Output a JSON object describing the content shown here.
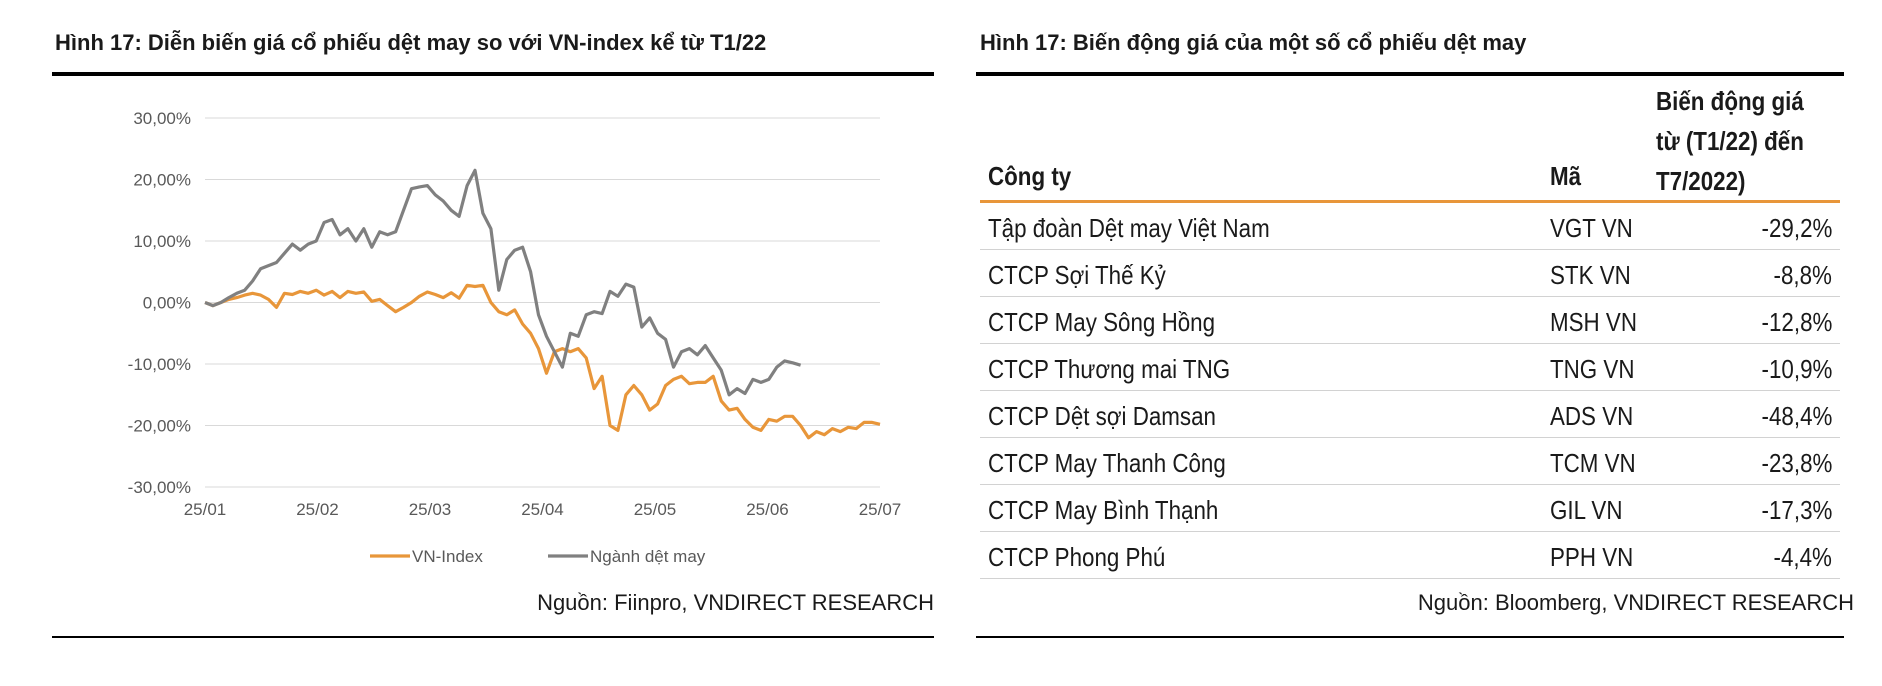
{
  "left_figure": {
    "title": "Hình 17: Diễn biến giá cổ phiếu dệt may so với VN-index kể từ T1/22",
    "source": "Nguồn: Fiinpro, VNDIRECT RESEARCH"
  },
  "right_figure": {
    "title": "Hình 17: Biến động giá của một số cổ phiếu dệt may",
    "source": "Nguồn: Bloomberg, VNDIRECT RESEARCH"
  },
  "colors": {
    "vn_index": "#e8963a",
    "textile": "#808080",
    "grid": "#d9d9d9",
    "table_rule": "#e8963a"
  },
  "chart_data": [
    {
      "type": "line",
      "ylim": [
        -30,
        30
      ],
      "yticks": [
        "30,00%",
        "20,00%",
        "10,00%",
        "0,00%",
        "-10,00%",
        "-20,00%",
        "-30,00%"
      ],
      "ytick_values": [
        30,
        20,
        10,
        0,
        -10,
        -20,
        -30
      ],
      "xticks": [
        "25/01",
        "25/02",
        "25/03",
        "25/04",
        "25/05",
        "25/06",
        "25/07"
      ],
      "grid": true,
      "legend": "bottom",
      "series": [
        {
          "name": "VN-Index",
          "color": "#e8963a",
          "points": [
            [
              0,
              0
            ],
            [
              1,
              -0.5
            ],
            [
              2,
              0
            ],
            [
              3,
              0.5
            ],
            [
              4,
              0.8
            ],
            [
              5,
              1.2
            ],
            [
              6,
              1.5
            ],
            [
              7,
              1.2
            ],
            [
              8,
              0.5
            ],
            [
              9,
              -0.8
            ],
            [
              10,
              1.5
            ],
            [
              11,
              1.3
            ],
            [
              12,
              1.8
            ],
            [
              13,
              1.5
            ],
            [
              14,
              2
            ],
            [
              15,
              1.2
            ],
            [
              16,
              1.8
            ],
            [
              17,
              0.8
            ],
            [
              18,
              1.8
            ],
            [
              19,
              1.5
            ],
            [
              20,
              1.7
            ],
            [
              21,
              0.2
            ],
            [
              22,
              0.5
            ],
            [
              23,
              -0.5
            ],
            [
              24,
              -1.5
            ],
            [
              25,
              -0.8
            ],
            [
              26,
              0
            ],
            [
              27,
              1
            ],
            [
              28,
              1.7
            ],
            [
              29,
              1.3
            ],
            [
              30,
              0.8
            ],
            [
              31,
              1.6
            ],
            [
              32,
              0.7
            ],
            [
              33,
              2.8
            ],
            [
              34,
              2.6
            ],
            [
              35,
              2.8
            ],
            [
              36,
              0
            ],
            [
              37,
              -1.5
            ],
            [
              38,
              -2
            ],
            [
              39,
              -1.2
            ],
            [
              40,
              -3.5
            ],
            [
              41,
              -5
            ],
            [
              42,
              -7.5
            ],
            [
              43,
              -11.5
            ],
            [
              44,
              -8
            ],
            [
              45,
              -7.5
            ],
            [
              46,
              -8
            ],
            [
              47,
              -7.5
            ],
            [
              48,
              -9
            ],
            [
              49,
              -14
            ],
            [
              50,
              -12
            ],
            [
              51,
              -20
            ],
            [
              52,
              -20.8
            ],
            [
              53,
              -15
            ],
            [
              54,
              -13.5
            ],
            [
              55,
              -15
            ],
            [
              56,
              -17.5
            ],
            [
              57,
              -16.5
            ],
            [
              58,
              -13.5
            ],
            [
              59,
              -12.5
            ],
            [
              60,
              -12
            ],
            [
              61,
              -13.2
            ],
            [
              62,
              -13
            ],
            [
              63,
              -13
            ],
            [
              64,
              -12
            ],
            [
              65,
              -16
            ],
            [
              66,
              -17.5
            ],
            [
              67,
              -17.2
            ],
            [
              68,
              -19
            ],
            [
              69,
              -20.3
            ],
            [
              70,
              -20.8
            ],
            [
              71,
              -19
            ],
            [
              72,
              -19.3
            ],
            [
              73,
              -18.5
            ],
            [
              74,
              -18.5
            ],
            [
              75,
              -20
            ],
            [
              76,
              -22
            ],
            [
              77,
              -21
            ],
            [
              78,
              -21.5
            ],
            [
              79,
              -20.5
            ],
            [
              80,
              -21
            ],
            [
              81,
              -20.3
            ],
            [
              82,
              -20.5
            ],
            [
              83,
              -19.5
            ],
            [
              84,
              -19.5
            ],
            [
              85,
              -19.8
            ]
          ]
        },
        {
          "name": "Ngành dệt may",
          "color": "#808080",
          "points": [
            [
              0,
              0
            ],
            [
              1,
              -0.5
            ],
            [
              2,
              0
            ],
            [
              3,
              0.8
            ],
            [
              4,
              1.5
            ],
            [
              5,
              2
            ],
            [
              6,
              3.5
            ],
            [
              7,
              5.5
            ],
            [
              8,
              6
            ],
            [
              9,
              6.5
            ],
            [
              10,
              8
            ],
            [
              11,
              9.5
            ],
            [
              12,
              8.5
            ],
            [
              13,
              9.5
            ],
            [
              14,
              10
            ],
            [
              15,
              13
            ],
            [
              16,
              13.5
            ],
            [
              17,
              11
            ],
            [
              18,
              12
            ],
            [
              19,
              10
            ],
            [
              20,
              12
            ],
            [
              21,
              9
            ],
            [
              22,
              11.5
            ],
            [
              23,
              11
            ],
            [
              24,
              11.5
            ],
            [
              25,
              15
            ],
            [
              26,
              18.5
            ],
            [
              27,
              18.8
            ],
            [
              28,
              19
            ],
            [
              29,
              17.5
            ],
            [
              30,
              16.5
            ],
            [
              31,
              15
            ],
            [
              32,
              14
            ],
            [
              33,
              19
            ],
            [
              34,
              21.5
            ],
            [
              35,
              14.5
            ],
            [
              36,
              12
            ],
            [
              37,
              2
            ],
            [
              38,
              7
            ],
            [
              39,
              8.5
            ],
            [
              40,
              9
            ],
            [
              41,
              5
            ],
            [
              42,
              -2
            ],
            [
              43,
              -5.5
            ],
            [
              44,
              -8
            ],
            [
              45,
              -10.5
            ],
            [
              46,
              -5
            ],
            [
              47,
              -5.5
            ],
            [
              48,
              -2
            ],
            [
              49,
              -1.5
            ],
            [
              50,
              -1.8
            ],
            [
              51,
              1.8
            ],
            [
              52,
              1
            ],
            [
              53,
              3
            ],
            [
              54,
              2.5
            ],
            [
              55,
              -4
            ],
            [
              56,
              -2.5
            ],
            [
              57,
              -5
            ],
            [
              58,
              -6
            ],
            [
              59,
              -10.5
            ],
            [
              60,
              -8
            ],
            [
              61,
              -7.5
            ],
            [
              62,
              -8.5
            ],
            [
              63,
              -7
            ],
            [
              64,
              -9
            ],
            [
              65,
              -11
            ],
            [
              66,
              -15
            ],
            [
              67,
              -14
            ],
            [
              68,
              -14.8
            ],
            [
              69,
              -12.5
            ],
            [
              70,
              -13
            ],
            [
              71,
              -12.5
            ],
            [
              72,
              -10.5
            ],
            [
              73,
              -9.5
            ],
            [
              74,
              -9.8
            ],
            [
              75,
              -10.2
            ]
          ]
        }
      ]
    },
    {
      "type": "table",
      "columns": [
        "Công ty",
        "Mã",
        "Biến động giá từ (T1/22) đến T7/2022)"
      ],
      "header_lines": [
        "Biến động giá",
        "từ (T1/22) đến",
        "T7/2022)"
      ],
      "rows": [
        [
          "Tập đoàn Dệt may Việt Nam",
          "VGT VN",
          "-29,2%"
        ],
        [
          "CTCP Sợi Thế Kỷ",
          "STK VN",
          "-8,8%"
        ],
        [
          "CTCP May Sông Hồng",
          "MSH VN",
          "-12,8%"
        ],
        [
          "CTCP Thương mai TNG",
          "TNG VN",
          "-10,9%"
        ],
        [
          "CTCP Dệt sợi Damsan",
          "ADS VN",
          "-48,4%"
        ],
        [
          "CTCP May Thanh Công",
          "TCM VN",
          "-23,8%"
        ],
        [
          "CTCP May Bình Thạnh",
          "GIL VN",
          "-17,3%"
        ],
        [
          "CTCP Phong Phú",
          "PPH VN",
          "-4,4%"
        ]
      ]
    }
  ]
}
